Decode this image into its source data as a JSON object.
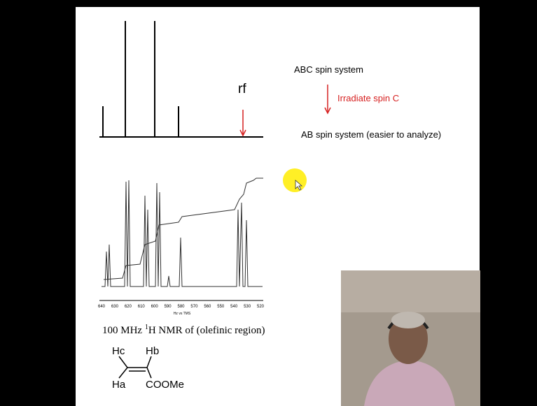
{
  "slide": {
    "stick_spectrum": {
      "label": "rf"
    },
    "right_text": {
      "abc": "ABC spin system",
      "irradiate": "Irradiate spin C",
      "ab": "AB spin system  (easier to analyze)"
    },
    "nmr_spectrum": {
      "ticks": [
        "640",
        "630",
        "620",
        "610",
        "600",
        "590",
        "580",
        "570",
        "560",
        "550",
        "540",
        "530",
        "520"
      ],
      "axis_title": "Hz vs TMS"
    },
    "caption": {
      "pre": "100 MHz ",
      "sup": "1",
      "post": "H NMR of (olefinic region)"
    },
    "structure": {
      "hc": "Hc",
      "hb": "Hb",
      "ha": "Ha",
      "coome": "COOMe"
    }
  }
}
